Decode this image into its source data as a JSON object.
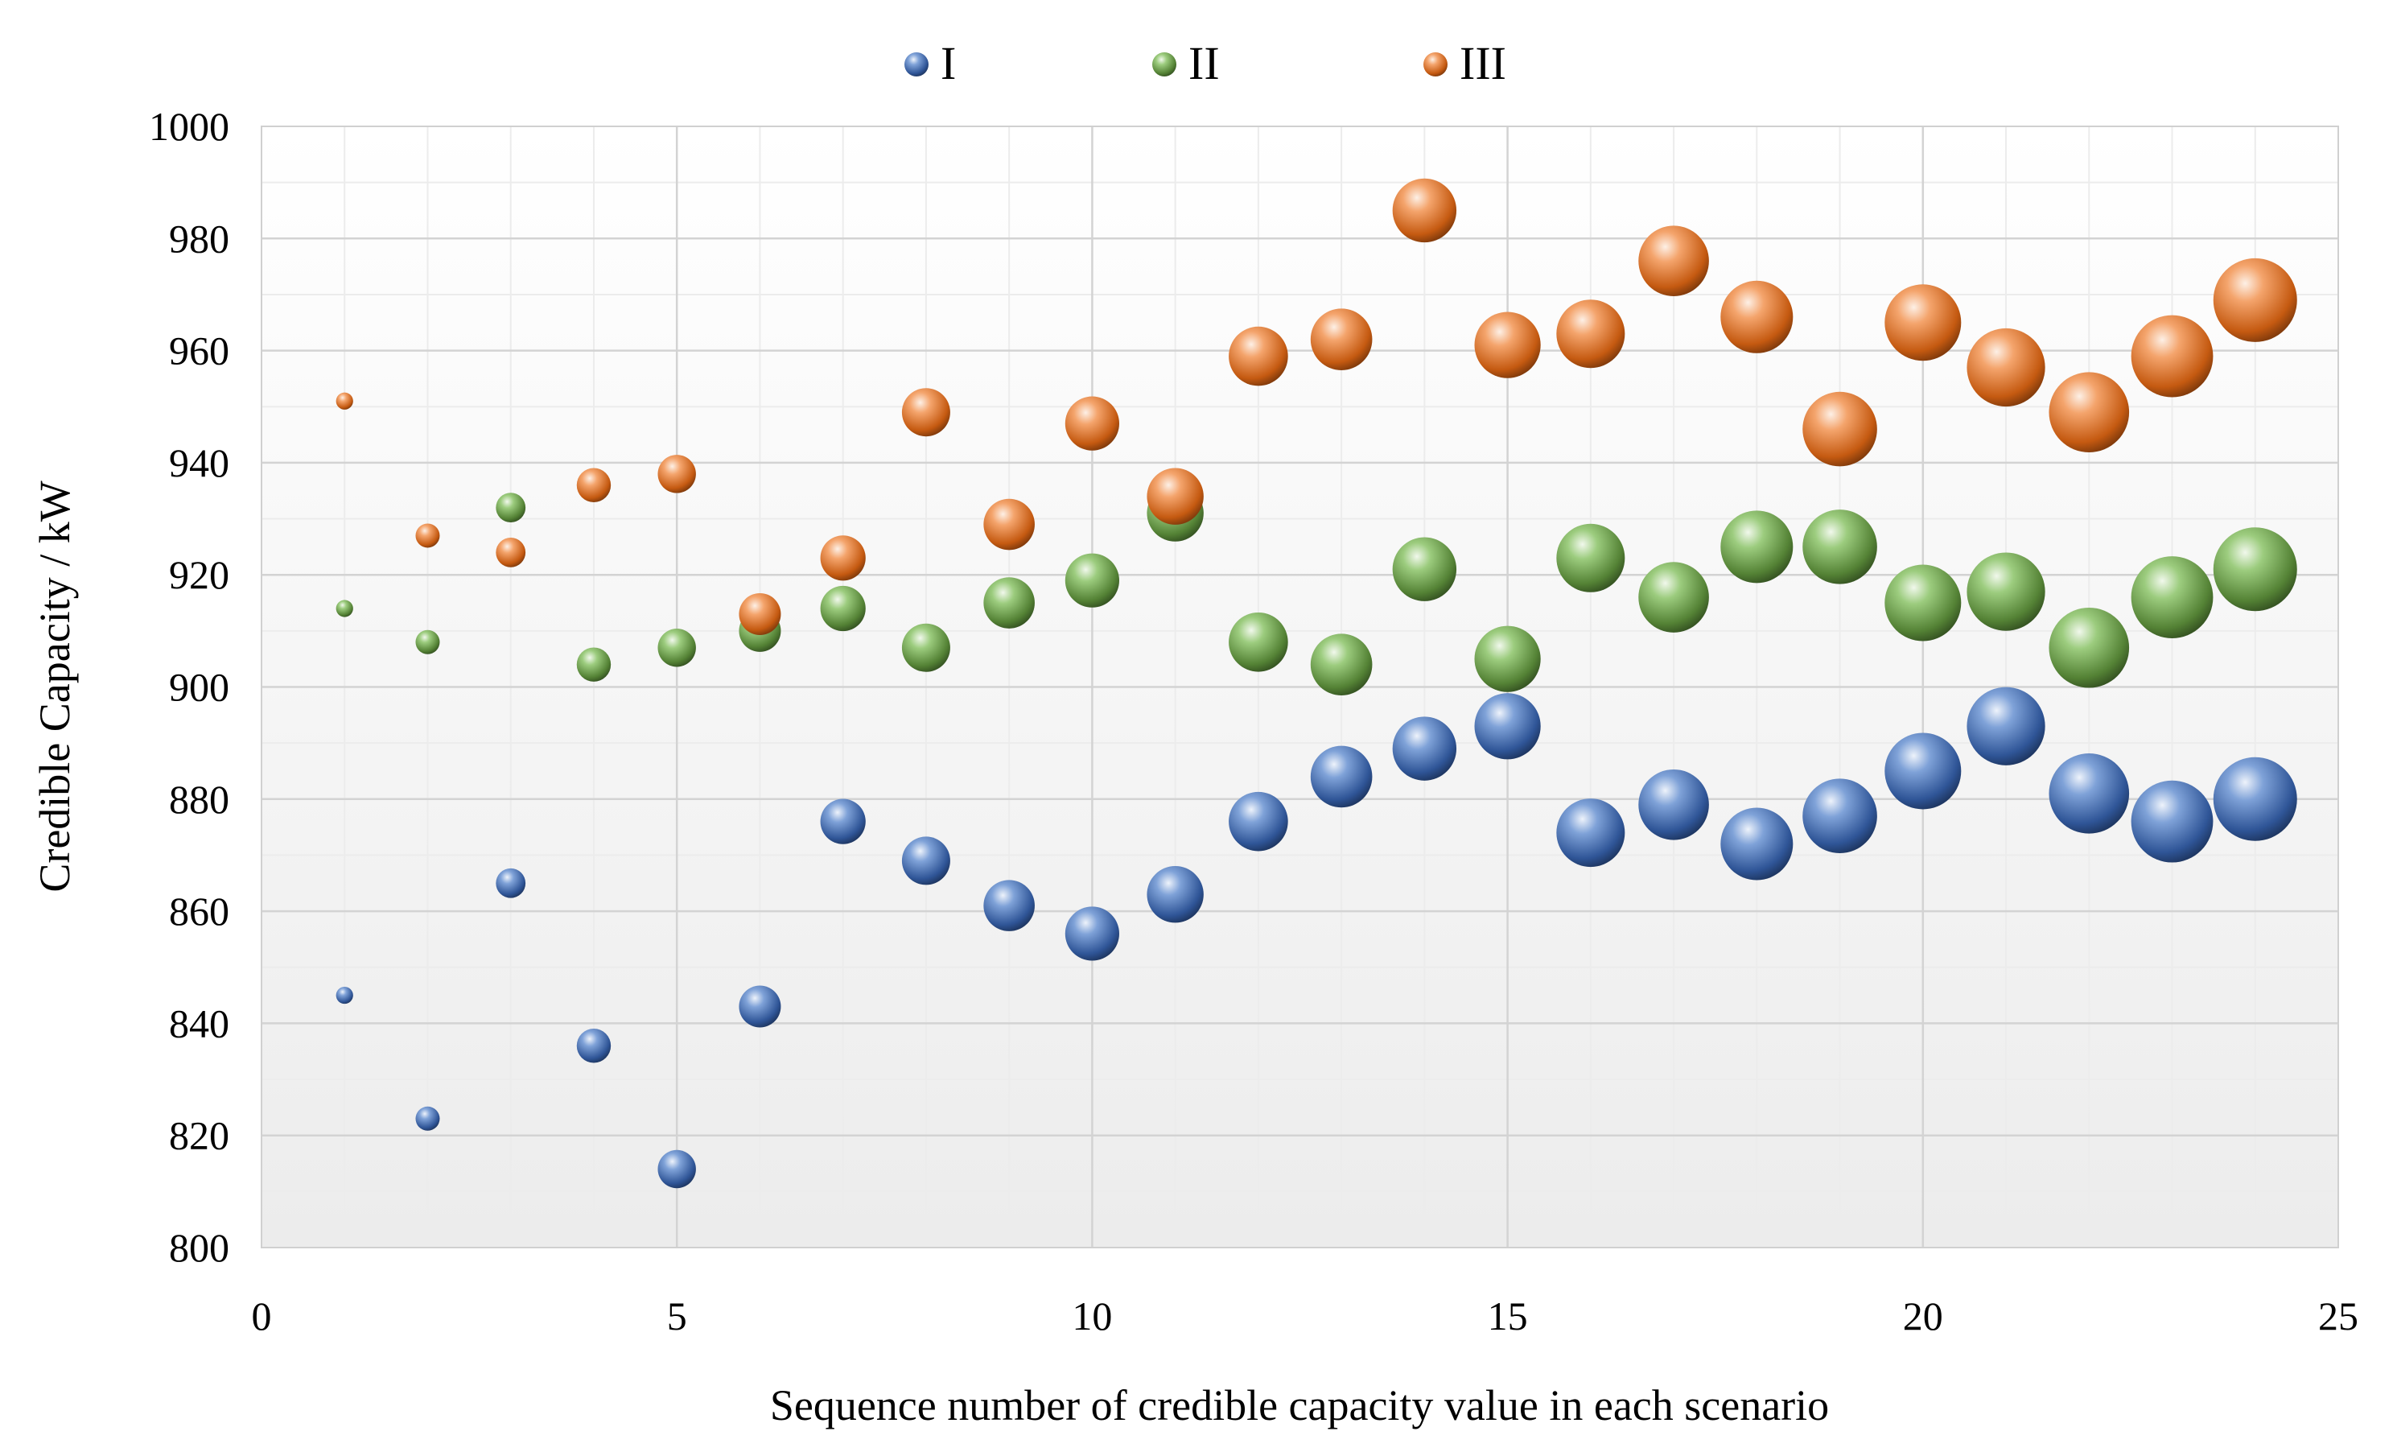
{
  "chart_data": {
    "type": "bubble",
    "title": "",
    "xlabel": "Sequence number of credible capacity value in each scenario",
    "ylabel": "Credible Capacity / kW",
    "xlim": [
      0,
      25
    ],
    "ylim": [
      800,
      1000
    ],
    "xticks": [
      0,
      5,
      10,
      15,
      20,
      25
    ],
    "yticks": [
      800,
      820,
      840,
      860,
      880,
      900,
      920,
      940,
      960,
      980,
      1000
    ],
    "xtick_labels": [
      "0",
      "5",
      "10",
      "15",
      "20",
      "25"
    ],
    "ytick_labels": [
      "800",
      "820",
      "840",
      "860",
      "880",
      "900",
      "920",
      "940",
      "960",
      "980",
      "1000"
    ],
    "grid": true,
    "legend_position": "top-center",
    "bubble_size_note": "bubble size grows with the sequence number",
    "series": [
      {
        "name": "I",
        "color": "#4472C4",
        "x": [
          1,
          2,
          3,
          4,
          5,
          6,
          7,
          8,
          9,
          10,
          11,
          12,
          13,
          14,
          15,
          16,
          17,
          18,
          19,
          20,
          21,
          22,
          23,
          24
        ],
        "y": [
          845,
          823,
          865,
          836,
          814,
          843,
          876,
          869,
          861,
          856,
          863,
          876,
          884,
          889,
          893,
          874,
          879,
          872,
          877,
          885,
          893,
          881,
          876,
          880
        ],
        "size": [
          1,
          2,
          3,
          4,
          5,
          6,
          7,
          8,
          9,
          10,
          11,
          12,
          13,
          14,
          15,
          16,
          17,
          18,
          19,
          20,
          21,
          22,
          23,
          24
        ]
      },
      {
        "name": "II",
        "color": "#70AD47",
        "x": [
          1,
          2,
          3,
          4,
          5,
          6,
          7,
          8,
          9,
          10,
          11,
          12,
          13,
          14,
          15,
          16,
          17,
          18,
          19,
          20,
          21,
          22,
          23,
          24
        ],
        "y": [
          914,
          908,
          932,
          904,
          907,
          910,
          914,
          907,
          915,
          919,
          931,
          908,
          904,
          921,
          905,
          923,
          916,
          925,
          925,
          915,
          917,
          907,
          916,
          921
        ],
        "size": [
          1,
          2,
          3,
          4,
          5,
          6,
          7,
          8,
          9,
          10,
          11,
          12,
          13,
          14,
          15,
          16,
          17,
          18,
          19,
          20,
          21,
          22,
          23,
          24
        ]
      },
      {
        "name": "III",
        "color": "#ED7D31",
        "x": [
          1,
          2,
          3,
          4,
          5,
          6,
          7,
          8,
          9,
          10,
          11,
          12,
          13,
          14,
          15,
          16,
          17,
          18,
          19,
          20,
          21,
          22,
          23,
          24
        ],
        "y": [
          951,
          927,
          924,
          936,
          938,
          913,
          923,
          949,
          929,
          947,
          934,
          959,
          962,
          985,
          961,
          963,
          976,
          966,
          946,
          965,
          957,
          949,
          959,
          969
        ],
        "size": [
          1,
          2,
          3,
          4,
          5,
          6,
          7,
          8,
          9,
          10,
          11,
          12,
          13,
          14,
          15,
          16,
          17,
          18,
          19,
          20,
          21,
          22,
          23,
          24
        ]
      }
    ]
  }
}
